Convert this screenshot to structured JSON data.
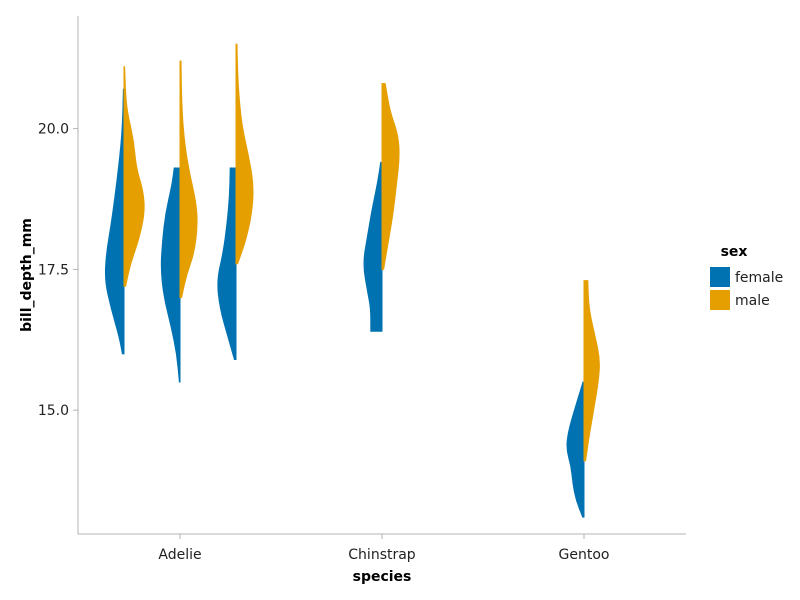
{
  "chart_data": {
    "type": "violin",
    "split_by": "sex",
    "xlabel": "species",
    "ylabel": "bill_depth_mm",
    "ylim": [
      12.8,
      22.0
    ],
    "categories": [
      "Adelie",
      "Chinstrap",
      "Gentoo"
    ],
    "yticks": [
      15.0,
      17.5,
      20.0
    ],
    "ytick_labels": [
      "15.0",
      "17.5",
      "20.0"
    ],
    "legend": {
      "title": "sex",
      "placement": "right",
      "entries": [
        {
          "label": "female",
          "color": "#0072b2"
        },
        {
          "label": "male",
          "color": "#e69f00"
        }
      ]
    },
    "grid": false,
    "violins": [
      {
        "category": "Adelie",
        "offset": -1,
        "sex": "female",
        "min": 16.0,
        "max": 20.7,
        "profile": [
          [
            16.0,
            0.05
          ],
          [
            16.3,
            0.15
          ],
          [
            16.8,
            0.4
          ],
          [
            17.3,
            0.6
          ],
          [
            17.8,
            0.55
          ],
          [
            18.3,
            0.4
          ],
          [
            18.8,
            0.28
          ],
          [
            19.4,
            0.15
          ],
          [
            20.0,
            0.05
          ],
          [
            20.7,
            0.02
          ]
        ]
      },
      {
        "category": "Adelie",
        "offset": -1,
        "sex": "male",
        "min": 17.2,
        "max": 21.1,
        "profile": [
          [
            17.2,
            0.05
          ],
          [
            17.6,
            0.2
          ],
          [
            18.0,
            0.45
          ],
          [
            18.5,
            0.65
          ],
          [
            18.9,
            0.6
          ],
          [
            19.3,
            0.38
          ],
          [
            19.8,
            0.3
          ],
          [
            20.3,
            0.1
          ],
          [
            20.7,
            0.04
          ],
          [
            21.1,
            0.02
          ]
        ]
      },
      {
        "category": "Adelie",
        "offset": 0,
        "sex": "female",
        "min": 15.5,
        "max": 19.3,
        "profile": [
          [
            15.5,
            0.02
          ],
          [
            16.0,
            0.1
          ],
          [
            16.5,
            0.28
          ],
          [
            17.0,
            0.5
          ],
          [
            17.5,
            0.6
          ],
          [
            18.0,
            0.55
          ],
          [
            18.5,
            0.45
          ],
          [
            19.0,
            0.25
          ],
          [
            19.3,
            0.18
          ]
        ]
      },
      {
        "category": "Adelie",
        "offset": 0,
        "sex": "male",
        "min": 17.0,
        "max": 21.2,
        "profile": [
          [
            17.0,
            0.05
          ],
          [
            17.4,
            0.2
          ],
          [
            17.8,
            0.45
          ],
          [
            18.3,
            0.55
          ],
          [
            18.7,
            0.5
          ],
          [
            19.2,
            0.3
          ],
          [
            19.7,
            0.15
          ],
          [
            20.3,
            0.06
          ],
          [
            21.2,
            0.03
          ]
        ]
      },
      {
        "category": "Adelie",
        "offset": 1,
        "sex": "female",
        "min": 15.9,
        "max": 19.3,
        "profile": [
          [
            15.9,
            0.05
          ],
          [
            16.3,
            0.25
          ],
          [
            16.8,
            0.5
          ],
          [
            17.3,
            0.6
          ],
          [
            17.8,
            0.4
          ],
          [
            18.3,
            0.28
          ],
          [
            18.8,
            0.2
          ],
          [
            19.3,
            0.18
          ]
        ]
      },
      {
        "category": "Adelie",
        "offset": 1,
        "sex": "male",
        "min": 17.6,
        "max": 21.5,
        "profile": [
          [
            17.6,
            0.05
          ],
          [
            18.0,
            0.3
          ],
          [
            18.5,
            0.5
          ],
          [
            19.0,
            0.55
          ],
          [
            19.5,
            0.4
          ],
          [
            20.0,
            0.2
          ],
          [
            20.5,
            0.1
          ],
          [
            21.0,
            0.05
          ],
          [
            21.5,
            0.03
          ]
        ]
      },
      {
        "category": "Chinstrap",
        "offset": 0,
        "sex": "female",
        "min": 16.4,
        "max": 19.4,
        "profile": [
          [
            16.4,
            0.35
          ],
          [
            16.8,
            0.35
          ],
          [
            17.1,
            0.45
          ],
          [
            17.6,
            0.6
          ],
          [
            18.1,
            0.45
          ],
          [
            18.6,
            0.3
          ],
          [
            19.0,
            0.15
          ],
          [
            19.4,
            0.04
          ]
        ]
      },
      {
        "category": "Chinstrap",
        "offset": 0,
        "sex": "male",
        "min": 17.5,
        "max": 20.8,
        "profile": [
          [
            17.5,
            0.05
          ],
          [
            18.0,
            0.2
          ],
          [
            18.5,
            0.35
          ],
          [
            19.0,
            0.45
          ],
          [
            19.5,
            0.55
          ],
          [
            19.9,
            0.5
          ],
          [
            20.3,
            0.25
          ],
          [
            20.8,
            0.1
          ]
        ]
      },
      {
        "category": "Gentoo",
        "offset": 0,
        "sex": "female",
        "min": 13.1,
        "max": 15.5,
        "profile": [
          [
            13.1,
            0.04
          ],
          [
            13.4,
            0.25
          ],
          [
            13.7,
            0.35
          ],
          [
            14.0,
            0.4
          ],
          [
            14.3,
            0.55
          ],
          [
            14.6,
            0.5
          ],
          [
            15.0,
            0.3
          ],
          [
            15.5,
            0.03
          ]
        ]
      },
      {
        "category": "Gentoo",
        "offset": 0,
        "sex": "male",
        "min": 14.1,
        "max": 17.3,
        "profile": [
          [
            14.1,
            0.05
          ],
          [
            14.5,
            0.15
          ],
          [
            15.0,
            0.3
          ],
          [
            15.5,
            0.45
          ],
          [
            15.9,
            0.5
          ],
          [
            16.3,
            0.35
          ],
          [
            16.8,
            0.15
          ],
          [
            17.3,
            0.12
          ]
        ]
      }
    ]
  }
}
